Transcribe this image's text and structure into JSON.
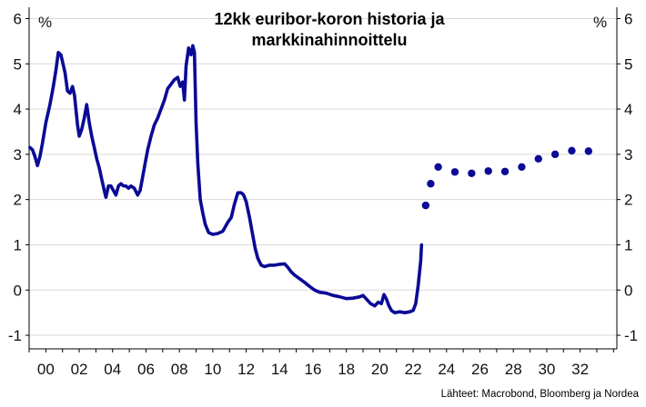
{
  "chart_data": {
    "type": "line",
    "title_lines": [
      "12kk euribor-koron historia ja",
      "markkinahinnoittelu"
    ],
    "unit_left": "%",
    "unit_right": "%",
    "source": "Lähteet: Macrobond, Bloomberg ja Nordea",
    "xlim": [
      1999,
      2034.2
    ],
    "ylim": [
      -1.3,
      6.25
    ],
    "x_ticks": [
      2000,
      2002,
      2004,
      2006,
      2008,
      2010,
      2012,
      2014,
      2016,
      2018,
      2020,
      2022,
      2024,
      2026,
      2028,
      2030,
      2032
    ],
    "x_tick_labels": [
      "00",
      "02",
      "04",
      "06",
      "08",
      "10",
      "12",
      "14",
      "16",
      "18",
      "20",
      "22",
      "24",
      "26",
      "28",
      "30",
      "32"
    ],
    "y_ticks": [
      -1,
      0,
      1,
      2,
      3,
      4,
      5,
      6
    ],
    "y_tick_labels": [
      "-1",
      "0",
      "1",
      "2",
      "3",
      "4",
      "5",
      "6"
    ],
    "grid": "horizontal",
    "colors": {
      "series": "#0a0a96",
      "grid": "#d9d9d9",
      "axis": "#000000"
    },
    "series": [
      {
        "style": "line",
        "points": [
          [
            1999.05,
            3.15
          ],
          [
            1999.2,
            3.1
          ],
          [
            1999.35,
            2.95
          ],
          [
            1999.5,
            2.75
          ],
          [
            1999.65,
            2.95
          ],
          [
            1999.8,
            3.25
          ],
          [
            2000.0,
            3.7
          ],
          [
            2000.25,
            4.1
          ],
          [
            2000.45,
            4.5
          ],
          [
            2000.6,
            4.85
          ],
          [
            2000.75,
            5.25
          ],
          [
            2000.9,
            5.2
          ],
          [
            2001.0,
            5.05
          ],
          [
            2001.15,
            4.8
          ],
          [
            2001.3,
            4.4
          ],
          [
            2001.45,
            4.35
          ],
          [
            2001.6,
            4.5
          ],
          [
            2001.72,
            4.3
          ],
          [
            2001.9,
            3.65
          ],
          [
            2002.0,
            3.4
          ],
          [
            2002.15,
            3.55
          ],
          [
            2002.3,
            3.8
          ],
          [
            2002.45,
            4.1
          ],
          [
            2002.6,
            3.7
          ],
          [
            2002.75,
            3.4
          ],
          [
            2002.9,
            3.15
          ],
          [
            2003.05,
            2.9
          ],
          [
            2003.2,
            2.7
          ],
          [
            2003.35,
            2.45
          ],
          [
            2003.5,
            2.2
          ],
          [
            2003.6,
            2.05
          ],
          [
            2003.75,
            2.3
          ],
          [
            2003.9,
            2.3
          ],
          [
            2004.05,
            2.2
          ],
          [
            2004.2,
            2.1
          ],
          [
            2004.35,
            2.3
          ],
          [
            2004.5,
            2.35
          ],
          [
            2004.65,
            2.3
          ],
          [
            2004.8,
            2.3
          ],
          [
            2004.95,
            2.25
          ],
          [
            2005.1,
            2.3
          ],
          [
            2005.3,
            2.25
          ],
          [
            2005.5,
            2.1
          ],
          [
            2005.65,
            2.2
          ],
          [
            2005.8,
            2.5
          ],
          [
            2005.95,
            2.8
          ],
          [
            2006.1,
            3.1
          ],
          [
            2006.3,
            3.4
          ],
          [
            2006.5,
            3.65
          ],
          [
            2006.7,
            3.8
          ],
          [
            2006.9,
            4.0
          ],
          [
            2007.1,
            4.2
          ],
          [
            2007.3,
            4.45
          ],
          [
            2007.5,
            4.55
          ],
          [
            2007.7,
            4.65
          ],
          [
            2007.9,
            4.7
          ],
          [
            2008.05,
            4.5
          ],
          [
            2008.2,
            4.6
          ],
          [
            2008.3,
            4.2
          ],
          [
            2008.4,
            4.95
          ],
          [
            2008.55,
            5.35
          ],
          [
            2008.7,
            5.2
          ],
          [
            2008.8,
            5.4
          ],
          [
            2008.9,
            5.25
          ],
          [
            2009.0,
            3.7
          ],
          [
            2009.1,
            2.8
          ],
          [
            2009.25,
            2.0
          ],
          [
            2009.4,
            1.7
          ],
          [
            2009.55,
            1.45
          ],
          [
            2009.75,
            1.27
          ],
          [
            2010.0,
            1.23
          ],
          [
            2010.3,
            1.25
          ],
          [
            2010.6,
            1.3
          ],
          [
            2010.9,
            1.5
          ],
          [
            2011.1,
            1.6
          ],
          [
            2011.3,
            1.9
          ],
          [
            2011.5,
            2.15
          ],
          [
            2011.7,
            2.15
          ],
          [
            2011.85,
            2.1
          ],
          [
            2012.0,
            1.95
          ],
          [
            2012.2,
            1.6
          ],
          [
            2012.4,
            1.2
          ],
          [
            2012.55,
            0.9
          ],
          [
            2012.7,
            0.7
          ],
          [
            2012.9,
            0.55
          ],
          [
            2013.1,
            0.52
          ],
          [
            2013.4,
            0.55
          ],
          [
            2013.7,
            0.55
          ],
          [
            2014.0,
            0.57
          ],
          [
            2014.3,
            0.58
          ],
          [
            2014.5,
            0.5
          ],
          [
            2014.7,
            0.4
          ],
          [
            2014.9,
            0.33
          ],
          [
            2015.2,
            0.25
          ],
          [
            2015.5,
            0.17
          ],
          [
            2015.8,
            0.08
          ],
          [
            2016.1,
            0.0
          ],
          [
            2016.4,
            -0.05
          ],
          [
            2016.8,
            -0.07
          ],
          [
            2017.2,
            -0.12
          ],
          [
            2017.6,
            -0.15
          ],
          [
            2018.0,
            -0.19
          ],
          [
            2018.4,
            -0.18
          ],
          [
            2018.8,
            -0.15
          ],
          [
            2019.0,
            -0.12
          ],
          [
            2019.2,
            -0.2
          ],
          [
            2019.45,
            -0.3
          ],
          [
            2019.7,
            -0.35
          ],
          [
            2019.9,
            -0.27
          ],
          [
            2020.1,
            -0.3
          ],
          [
            2020.25,
            -0.1
          ],
          [
            2020.4,
            -0.2
          ],
          [
            2020.55,
            -0.35
          ],
          [
            2020.7,
            -0.45
          ],
          [
            2020.9,
            -0.5
          ],
          [
            2021.2,
            -0.48
          ],
          [
            2021.5,
            -0.5
          ],
          [
            2021.8,
            -0.48
          ],
          [
            2022.0,
            -0.45
          ],
          [
            2022.15,
            -0.3
          ],
          [
            2022.3,
            0.1
          ],
          [
            2022.45,
            0.65
          ],
          [
            2022.5,
            1.0
          ]
        ]
      },
      {
        "style": "markers",
        "points": [
          [
            2022.75,
            1.87
          ],
          [
            2023.05,
            2.35
          ],
          [
            2023.5,
            2.72
          ],
          [
            2024.5,
            2.61
          ],
          [
            2025.5,
            2.58
          ],
          [
            2026.5,
            2.63
          ],
          [
            2027.5,
            2.62
          ],
          [
            2028.5,
            2.72
          ],
          [
            2029.5,
            2.9
          ],
          [
            2030.5,
            3.0
          ],
          [
            2031.5,
            3.08
          ],
          [
            2032.5,
            3.07
          ]
        ]
      }
    ]
  }
}
